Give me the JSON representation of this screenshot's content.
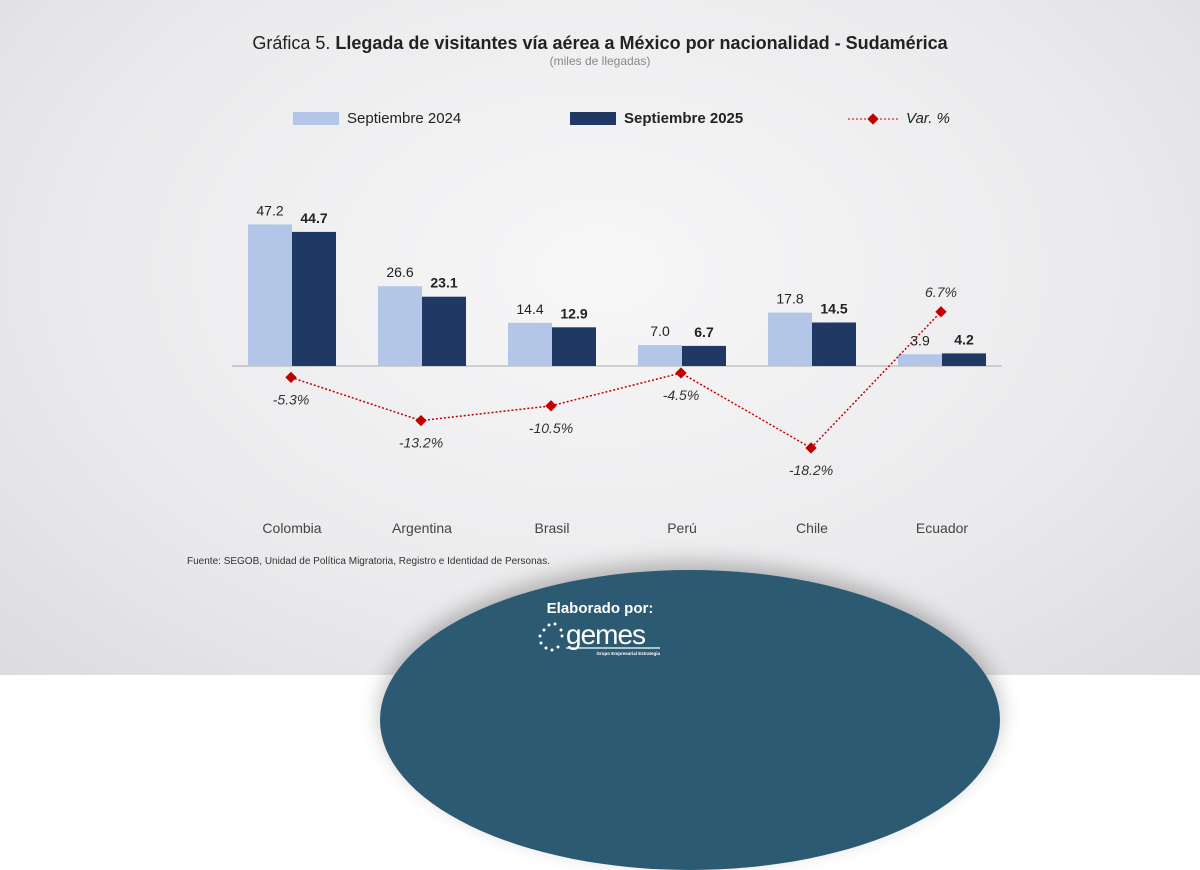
{
  "title_prefix": "Gráfica 5.",
  "title_main": "Llegada de visitantes vía aérea a México por nacionalidad - Sudamérica",
  "subtitle": "(miles de llegadas)",
  "source": "Fuente: SEGOB, Unidad de Política Migratoria, Registro e Identidad de Personas.",
  "credit_label": "Elaborado por:",
  "logo": {
    "name": "gemes",
    "tagline": "Grupo Empresarial Estrategia"
  },
  "chart_data": {
    "type": "bar",
    "categories": [
      "Colombia",
      "Argentina",
      "Brasil",
      "Perú",
      "Chile",
      "Ecuador"
    ],
    "series": [
      {
        "name": "Septiembre 2024",
        "color": "#b4c6e7",
        "values": [
          47.2,
          26.6,
          14.4,
          7.0,
          17.8,
          3.9
        ],
        "labels": [
          "47.2",
          "26.6",
          "14.4",
          "7.0",
          "17.8",
          "3.9"
        ]
      },
      {
        "name": "Septiembre 2025",
        "color": "#1f3864",
        "values": [
          44.7,
          23.1,
          12.9,
          6.7,
          14.5,
          4.2
        ],
        "labels": [
          "44.7",
          "23.1",
          "12.9",
          "6.7",
          "14.5",
          "4.2"
        ]
      },
      {
        "name": "Var. %",
        "type": "line",
        "axis": "secondary",
        "color": "#c00000",
        "values": [
          -5.3,
          -13.2,
          -10.5,
          -4.5,
          -18.2,
          6.7
        ],
        "labels": [
          "-5.3%",
          "-13.2%",
          "-10.5%",
          "-4.5%",
          "-18.2%",
          "6.7%"
        ]
      }
    ],
    "legend": "top",
    "grid": false
  }
}
